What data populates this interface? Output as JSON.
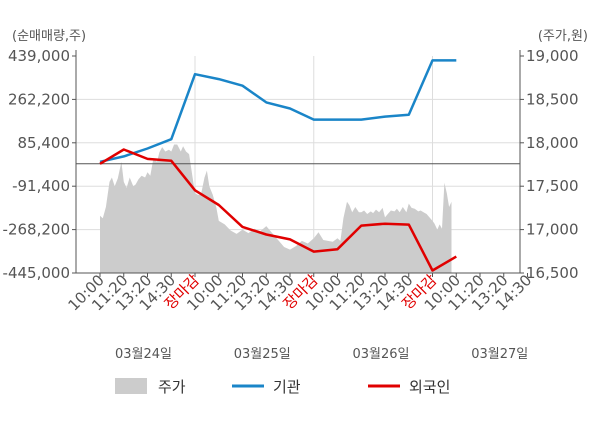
{
  "chart_data": {
    "type": "line",
    "left_axis_title": "(순매매량,주)",
    "right_axis_title": "(주가,원)",
    "left_ticks": [
      "439,000",
      "262,200",
      "85,400",
      "-91,400",
      "-268,200",
      "-445,000"
    ],
    "left_ylim": [
      -445000,
      439000
    ],
    "right_ticks": [
      "19,000",
      "18,500",
      "18,000",
      "17,500",
      "17,000",
      "16,500"
    ],
    "right_ylim": [
      16500,
      19000
    ],
    "x_ticks": [
      {
        "label": "10:00",
        "red": false
      },
      {
        "label": "11:20",
        "red": false
      },
      {
        "label": "13:20",
        "red": false
      },
      {
        "label": "14:30",
        "red": false
      },
      {
        "label": "장마감",
        "red": true
      },
      {
        "label": "10:00",
        "red": false
      },
      {
        "label": "11:20",
        "red": false
      },
      {
        "label": "13:20",
        "red": false
      },
      {
        "label": "14:30",
        "red": false
      },
      {
        "label": "장마감",
        "red": true
      },
      {
        "label": "10:00",
        "red": false
      },
      {
        "label": "11:20",
        "red": false
      },
      {
        "label": "13:20",
        "red": false
      },
      {
        "label": "14:30",
        "red": false
      },
      {
        "label": "장마감",
        "red": true
      },
      {
        "label": "10:00",
        "red": false
      },
      {
        "label": "11:20",
        "red": false
      },
      {
        "label": "13:20",
        "red": false
      },
      {
        "label": "14:30",
        "red": false
      }
    ],
    "dates": [
      "03월24일",
      "03월25일",
      "03월26일",
      "03월27일"
    ],
    "legend": [
      "주가",
      "기관",
      "외국인"
    ],
    "colors": {
      "price": "#cccccc",
      "institution": "#1a85c8",
      "foreign": "#e00000",
      "axis": "#555555",
      "grid": "#dddddd"
    },
    "series": [
      {
        "name": "기관",
        "x": [
          0,
          1,
          2,
          3,
          4,
          5,
          6,
          7,
          8,
          9,
          10,
          11,
          12,
          13,
          14,
          15
        ],
        "values": [
          8000,
          30000,
          62000,
          100000,
          365000,
          345000,
          318000,
          250000,
          225000,
          180000,
          180000,
          180000,
          192000,
          200000,
          421000,
          421000
        ]
      },
      {
        "name": "외국인",
        "x": [
          0,
          1,
          2,
          3,
          4,
          5,
          6,
          7,
          8,
          9,
          10,
          11,
          12,
          13,
          14,
          15
        ],
        "values": [
          0,
          58000,
          20000,
          12000,
          -108000,
          -168000,
          -257000,
          -288000,
          -308000,
          -358000,
          -348000,
          -252000,
          -244000,
          -248000,
          -435000,
          -378000
        ]
      }
    ],
    "price": {
      "x": [
        0,
        0.12,
        0.25,
        0.4,
        0.5,
        0.62,
        0.75,
        0.9,
        1.0,
        1.12,
        1.25,
        1.4,
        1.5,
        1.62,
        1.75,
        1.9,
        2.0,
        2.12,
        2.25,
        2.4,
        2.5,
        2.62,
        2.75,
        2.9,
        3.0,
        3.12,
        3.25,
        3.4,
        3.5,
        3.62,
        3.75,
        3.9,
        4.0,
        4.12,
        4.25,
        4.4,
        4.5,
        4.6,
        4.75,
        4.9,
        5.0,
        5.25,
        5.5,
        5.75,
        6.0,
        6.25,
        6.5,
        6.75,
        7.0,
        7.25,
        7.5,
        7.75,
        8.0,
        8.25,
        8.5,
        8.75,
        9.0,
        9.2,
        9.4,
        9.6,
        9.8,
        10.0,
        10.12,
        10.25,
        10.4,
        10.5,
        10.62,
        10.75,
        10.9,
        11.0,
        11.12,
        11.25,
        11.4,
        11.5,
        11.62,
        11.75,
        11.9,
        12.0,
        12.12,
        12.25,
        12.4,
        12.5,
        12.62,
        12.75,
        12.9,
        13.0,
        13.12,
        13.25,
        13.4,
        13.5,
        13.62,
        13.75,
        14.0,
        14.08,
        14.2,
        14.3,
        14.4,
        14.5,
        14.6,
        14.7,
        14.8
      ],
      "values": [
        17160,
        17130,
        17260,
        17550,
        17600,
        17500,
        17590,
        17780,
        17550,
        17480,
        17600,
        17500,
        17520,
        17580,
        17620,
        17600,
        17660,
        17620,
        17820,
        17780,
        17890,
        17950,
        17900,
        17920,
        17900,
        17980,
        17980,
        17900,
        17960,
        17900,
        17870,
        17600,
        17420,
        17400,
        17400,
        17600,
        17680,
        17500,
        17400,
        17250,
        17100,
        17060,
        16990,
        16950,
        17000,
        16960,
        17010,
        16980,
        17040,
        16960,
        16880,
        16800,
        16770,
        16810,
        16870,
        16840,
        16900,
        16970,
        16880,
        16870,
        16860,
        16900,
        16870,
        17130,
        17320,
        17280,
        17200,
        17260,
        17200,
        17200,
        17220,
        17180,
        17210,
        17190,
        17230,
        17200,
        17250,
        17140,
        17180,
        17220,
        17210,
        17240,
        17200,
        17260,
        17200,
        17300,
        17250,
        17240,
        17210,
        17220,
        17200,
        17180,
        17100,
        17070,
        17000,
        17060,
        17010,
        17540,
        17420,
        17260,
        17320
      ]
    }
  }
}
